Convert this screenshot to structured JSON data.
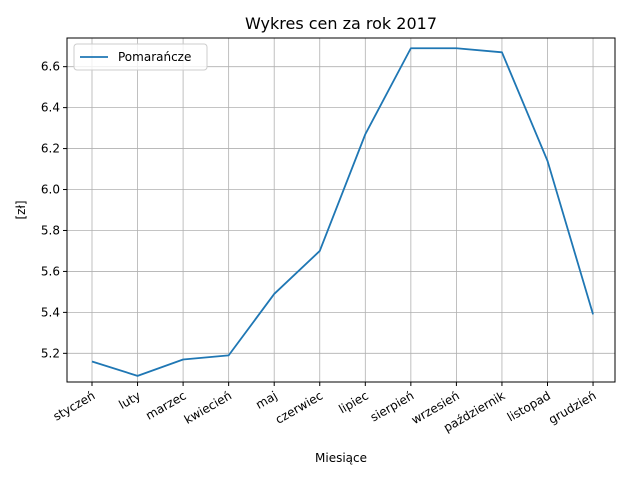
{
  "chart_data": {
    "type": "line",
    "title": "Wykres cen za rok 2017",
    "xlabel": "Miesiące",
    "ylabel": "[zł]",
    "categories": [
      "styczeń",
      "luty",
      "marzec",
      "kwiecień",
      "maj",
      "czerwiec",
      "lipiec",
      "sierpień",
      "wrzesień",
      "październik",
      "listopad",
      "grudzień"
    ],
    "series": [
      {
        "name": "Pomarańcze",
        "color": "#1f77b4",
        "values": [
          5.16,
          5.09,
          5.17,
          5.19,
          5.49,
          5.7,
          6.27,
          6.69,
          6.69,
          6.67,
          6.14,
          5.39
        ]
      }
    ],
    "ylim": [
      5.06,
      6.74
    ],
    "yticks": [
      5.2,
      5.4,
      5.6,
      5.8,
      6.0,
      6.2,
      6.4,
      6.6
    ],
    "ytick_labels": [
      "5.2",
      "5.4",
      "5.6",
      "5.8",
      "6.0",
      "6.2",
      "6.4",
      "6.6"
    ],
    "grid": true,
    "legend_position": "top-left"
  }
}
